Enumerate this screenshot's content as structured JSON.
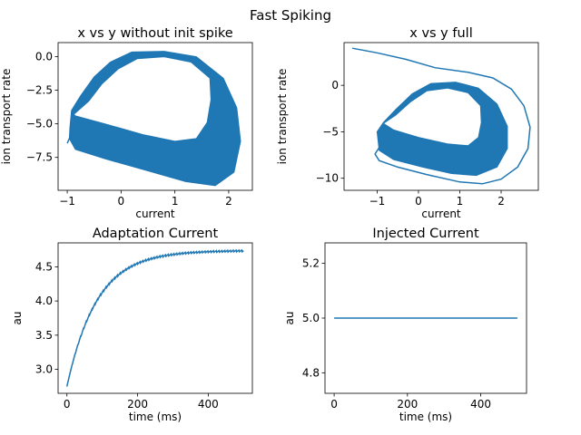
{
  "figure": {
    "suptitle": "Fast Spiking",
    "accent_color": "#1f77b4"
  },
  "chart_data": [
    {
      "type": "line",
      "title": "x vs y without init spike",
      "xlabel": "current",
      "ylabel": "ion transport rate",
      "xlim": [
        -1.17,
        2.44
      ],
      "ylim": [
        -9.95,
        1.05
      ],
      "xticks": [
        -1,
        0,
        1,
        2
      ],
      "yticks": [
        0.0,
        -2.5,
        -5.0,
        -7.5
      ],
      "ytick_labels": [
        "0.0",
        "−2.5",
        "−5.0",
        "−7.5"
      ],
      "xtick_labels": [
        "−1",
        "0",
        "1",
        "2"
      ],
      "grid": false,
      "series": [
        {
          "fill_band": true,
          "outer": [
            [
              -0.95,
              -5.3
            ],
            [
              -0.92,
              -4.0
            ],
            [
              -0.75,
              -2.9
            ],
            [
              -0.5,
              -1.5
            ],
            [
              -0.2,
              -0.4
            ],
            [
              0.2,
              0.35
            ],
            [
              0.8,
              0.4
            ],
            [
              1.4,
              0.0
            ],
            [
              1.9,
              -1.6
            ],
            [
              2.15,
              -3.8
            ],
            [
              2.22,
              -6.3
            ],
            [
              2.1,
              -8.6
            ],
            [
              1.75,
              -9.6
            ],
            [
              1.2,
              -9.3
            ],
            [
              0.5,
              -8.5
            ],
            [
              -0.3,
              -7.6
            ],
            [
              -0.85,
              -6.9
            ],
            [
              -0.96,
              -6.1
            ]
          ],
          "inner": [
            [
              -0.88,
              -4.3
            ],
            [
              -0.6,
              -3.3
            ],
            [
              -0.35,
              -2.0
            ],
            [
              -0.05,
              -0.9
            ],
            [
              0.3,
              -0.15
            ],
            [
              0.8,
              0.0
            ],
            [
              1.3,
              -0.4
            ],
            [
              1.65,
              -1.6
            ],
            [
              1.67,
              -3.2
            ],
            [
              1.6,
              -4.9
            ],
            [
              1.4,
              -6.1
            ],
            [
              1.0,
              -6.3
            ],
            [
              0.4,
              -5.8
            ],
            [
              -0.3,
              -5.0
            ],
            [
              -0.85,
              -4.4
            ]
          ],
          "tail": [
            [
              -1.0,
              -6.45
            ],
            [
              -0.94,
              -5.9
            ],
            [
              -0.9,
              -5.4
            ]
          ]
        }
      ]
    },
    {
      "type": "line",
      "title": "x vs y full",
      "xlabel": "current",
      "ylabel": "ion transport rate",
      "xlim": [
        -1.8,
        2.9
      ],
      "ylim": [
        -11.3,
        4.6
      ],
      "xticks": [
        -1,
        0,
        1,
        2
      ],
      "yticks": [
        0,
        -5,
        -10
      ],
      "ytick_labels": [
        "0",
        "−5",
        "−10"
      ],
      "xtick_labels": [
        "−1",
        "0",
        "1",
        "2"
      ],
      "grid": false,
      "series": [
        {
          "fill_band": true,
          "outer": [
            [
              -1.0,
              -5.0
            ],
            [
              -0.85,
              -4.0
            ],
            [
              -0.55,
              -2.6
            ],
            [
              -0.15,
              -0.9
            ],
            [
              0.3,
              0.2
            ],
            [
              0.9,
              0.35
            ],
            [
              1.45,
              -0.3
            ],
            [
              1.9,
              -2.0
            ],
            [
              2.15,
              -4.4
            ],
            [
              2.15,
              -6.8
            ],
            [
              1.9,
              -8.8
            ],
            [
              1.4,
              -9.7
            ],
            [
              0.8,
              -9.5
            ],
            [
              0.1,
              -8.8
            ],
            [
              -0.6,
              -8.0
            ],
            [
              -0.95,
              -7.0
            ]
          ],
          "inner": [
            [
              -0.85,
              -4.1
            ],
            [
              -0.55,
              -3.2
            ],
            [
              -0.2,
              -1.8
            ],
            [
              0.2,
              -0.6
            ],
            [
              0.7,
              -0.3
            ],
            [
              1.2,
              -0.8
            ],
            [
              1.5,
              -2.2
            ],
            [
              1.52,
              -4.0
            ],
            [
              1.45,
              -5.6
            ],
            [
              1.2,
              -6.5
            ],
            [
              0.7,
              -6.3
            ],
            [
              0.0,
              -5.6
            ],
            [
              -0.6,
              -4.8
            ]
          ],
          "outline": [
            [
              -1.6,
              4.0
            ],
            [
              -1.0,
              3.5
            ],
            [
              -0.3,
              2.8
            ],
            [
              0.4,
              1.9
            ],
            [
              1.2,
              1.4
            ],
            [
              1.8,
              0.8
            ],
            [
              2.25,
              -0.4
            ],
            [
              2.55,
              -2.2
            ],
            [
              2.7,
              -4.5
            ],
            [
              2.65,
              -6.8
            ],
            [
              2.4,
              -8.8
            ],
            [
              2.0,
              -10.1
            ],
            [
              1.55,
              -10.6
            ],
            [
              1.0,
              -10.4
            ],
            [
              0.2,
              -9.6
            ],
            [
              -0.5,
              -8.8
            ],
            [
              -0.95,
              -8.1
            ],
            [
              -1.05,
              -7.4
            ],
            [
              -0.95,
              -6.7
            ]
          ]
        }
      ]
    },
    {
      "type": "line",
      "title": "Adaptation Current",
      "xlabel": "time (ms)",
      "ylabel": "au",
      "xlim": [
        -25,
        525
      ],
      "ylim": [
        2.65,
        4.85
      ],
      "xticks": [
        0,
        200,
        400
      ],
      "xtick_labels": [
        "0",
        "200",
        "400"
      ],
      "yticks": [
        3.0,
        3.5,
        4.0,
        4.5
      ],
      "ytick_labels": [
        "3.0",
        "3.5",
        "4.0",
        "4.5"
      ],
      "grid": false,
      "series": [
        {
          "model": "saturating",
          "start": 2.75,
          "plateau": 4.74,
          "tau_ms": 85,
          "t_end": 500,
          "ripple": 0.028
        }
      ]
    },
    {
      "type": "line",
      "title": "Injected Current",
      "xlabel": "time (ms)",
      "ylabel": "au",
      "xlim": [
        -25,
        525
      ],
      "ylim": [
        4.725,
        5.275
      ],
      "xticks": [
        0,
        200,
        400
      ],
      "xtick_labels": [
        "0",
        "200",
        "400"
      ],
      "yticks": [
        4.8,
        5.0,
        5.2
      ],
      "ytick_labels": [
        "4.8",
        "5.0",
        "5.2"
      ],
      "grid": false,
      "series": [
        {
          "x": [
            0,
            500
          ],
          "y": [
            5.0,
            5.0
          ]
        }
      ]
    }
  ]
}
